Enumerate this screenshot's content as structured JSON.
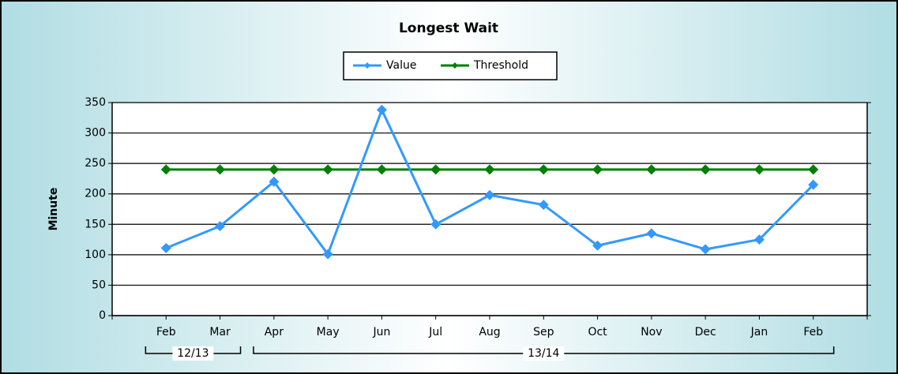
{
  "chart_data": {
    "type": "line",
    "title": "Longest Wait",
    "y_label": "Minute",
    "categories": [
      "Feb",
      "Mar",
      "Apr",
      "May",
      "Jun",
      "Jul",
      "Aug",
      "Sep",
      "Oct",
      "Nov",
      "Dec",
      "Jan",
      "Feb"
    ],
    "category_groups": [
      {
        "label": "12/13",
        "count": 2
      },
      {
        "label": "13/14",
        "count": 11
      }
    ],
    "series": [
      {
        "name": "Value",
        "color": "#3399ff",
        "values": [
          111,
          147,
          220,
          101,
          338,
          150,
          198,
          182,
          115,
          135,
          109,
          125,
          215
        ]
      },
      {
        "name": "Threshold",
        "color": "#008000",
        "values": [
          240,
          240,
          240,
          240,
          240,
          240,
          240,
          240,
          240,
          240,
          240,
          240,
          240
        ]
      }
    ],
    "ylim": [
      0,
      350
    ],
    "yticks": [
      0,
      50,
      100,
      150,
      200,
      250,
      300,
      350
    ],
    "grid": true,
    "legend": "top"
  }
}
